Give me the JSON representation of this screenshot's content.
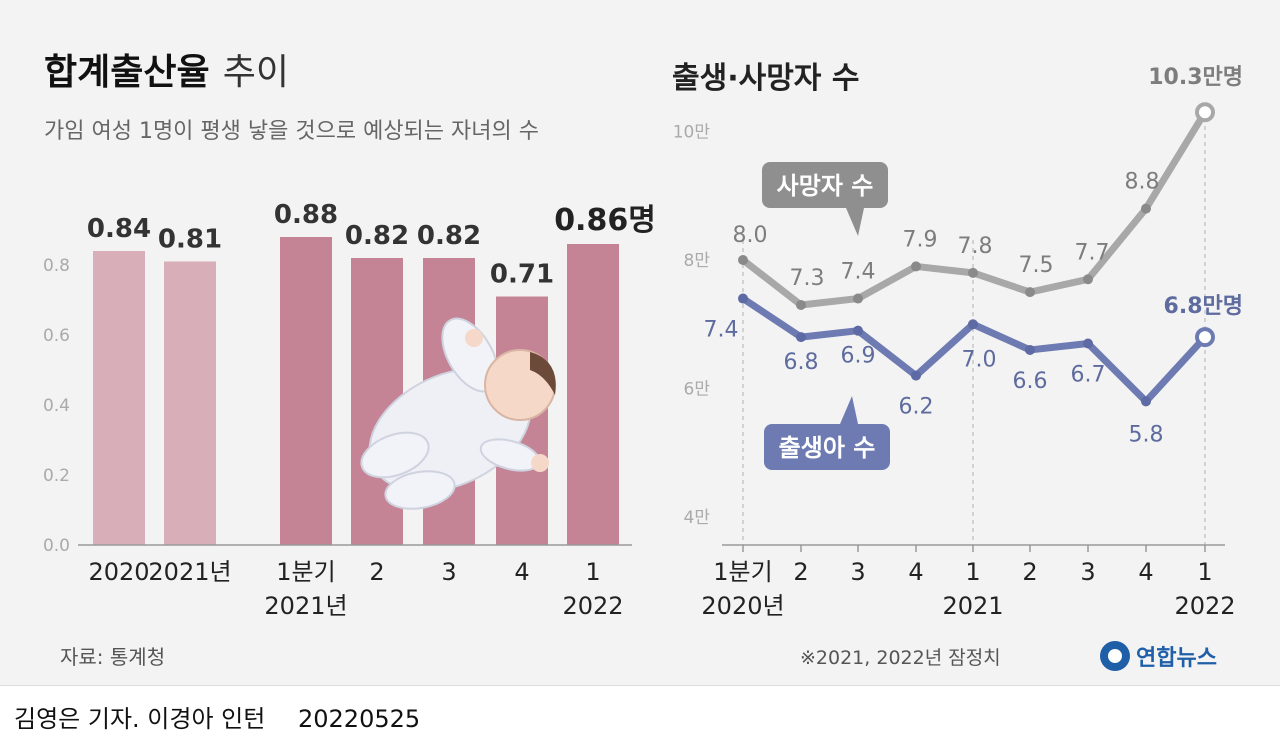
{
  "left": {
    "title_bold": "합계출산율",
    "title_light": "추이",
    "subtitle": "가임 여성 1명이 평생 낳을 것으로 예상되는 자녀의 수",
    "source": "자료: 통계청"
  },
  "right": {
    "title": "출생·사망자 수",
    "note": "※2021, 2022년 잠정치",
    "logo": "연합뉴스",
    "death_callout": "사망자 수",
    "birth_callout": "출생아 수"
  },
  "footer": {
    "credit": "김영은 기자. 이경아 인턴",
    "date": "20220525"
  },
  "colors": {
    "bar_light": "#d8aeb9",
    "bar_dark": "#c48495",
    "death_line": "#a8a8a8",
    "death_marker": "#8a8a8a",
    "birth_line": "#6e7bb3",
    "birth_marker": "#5d6aa3",
    "callout_gray": "#8f8f8f",
    "callout_blue": "#6e7bb3",
    "background": "#f3f3f3"
  },
  "chart_data": [
    {
      "type": "bar",
      "title": "합계출산율 추이",
      "subtitle": "가임 여성 1명이 평생 낳을 것으로 예상되는 자녀의 수",
      "categories": [
        "2020",
        "2021년",
        "1분기|2021년",
        "2",
        "3",
        "4",
        "1|2022"
      ],
      "values": [
        0.84,
        0.81,
        0.88,
        0.82,
        0.82,
        0.71,
        0.86
      ],
      "value_labels": [
        "0.84",
        "0.81",
        "0.88",
        "0.82",
        "0.82",
        "0.71",
        "0.86명"
      ],
      "bar_color_groups": [
        "light",
        "light",
        "dark",
        "dark",
        "dark",
        "dark",
        "dark"
      ],
      "ylim": [
        0,
        1.0
      ],
      "yticks": [
        "0.0",
        "0.2",
        "0.4",
        "0.6",
        "0.8"
      ],
      "grid": false
    },
    {
      "type": "line",
      "title": "출생·사망자 수",
      "x": [
        "1분기|2020년",
        "2",
        "3",
        "4",
        "1|2021",
        "2",
        "3",
        "4",
        "1|2022"
      ],
      "series": [
        {
          "name": "사망자 수",
          "values": [
            8.0,
            7.3,
            7.4,
            7.9,
            7.8,
            7.5,
            7.7,
            8.8,
            10.3
          ],
          "labels": [
            "8.0",
            "7.3",
            "7.4",
            "7.9",
            "7.8",
            "7.5",
            "7.7",
            "8.8",
            "10.3만명"
          ]
        },
        {
          "name": "출생아 수",
          "values": [
            7.4,
            6.8,
            6.9,
            6.2,
            7.0,
            6.6,
            6.7,
            5.8,
            6.8
          ],
          "labels": [
            "7.4",
            "6.8",
            "6.9",
            "6.2",
            "7.0",
            "6.6",
            "6.7",
            "5.8",
            "6.8만명"
          ]
        }
      ],
      "ylim": [
        4,
        10.3
      ],
      "yticks": [
        "4만",
        "6만",
        "8만",
        "10만"
      ],
      "unit": "만명"
    }
  ]
}
